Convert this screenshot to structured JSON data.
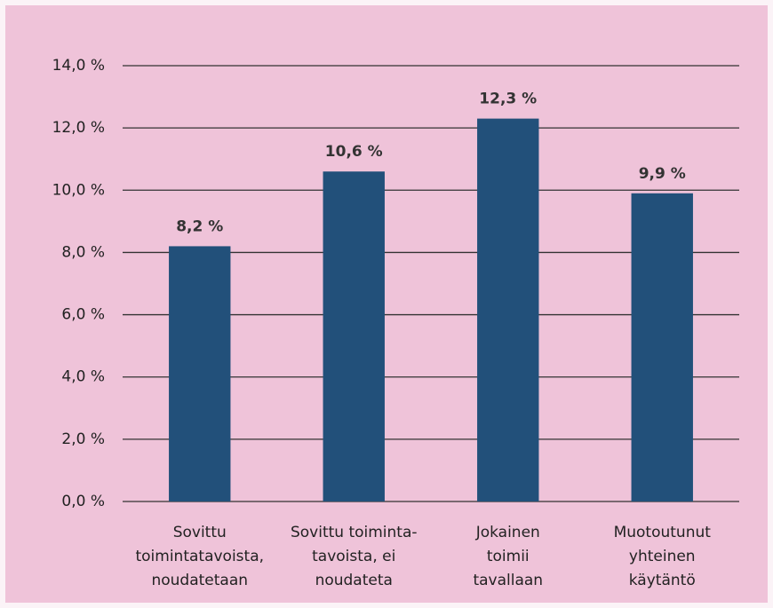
{
  "chart_data": {
    "type": "bar",
    "categories": [
      "Sovittu\ntoimintatavoista,\nnoudatetaan",
      "Sovittu toiminta-\ntavoista, ei\nnoudateta",
      "Jokainen\ntoimii\ntavallaan",
      "Muotoutunut\nyhteinen\nkäytäntö"
    ],
    "values": [
      8.2,
      10.6,
      12.3,
      9.9
    ],
    "value_labels": [
      "8,2 %",
      "10,6 %",
      "12,3 %",
      "9,9 %"
    ],
    "color": "#22507a",
    "ylim": [
      0,
      14
    ],
    "yticks": [
      {
        "value": 0,
        "label": "0,0 %"
      },
      {
        "value": 2,
        "label": "2,0 %"
      },
      {
        "value": 4,
        "label": "4,0 %"
      },
      {
        "value": 6,
        "label": "6,0 %"
      },
      {
        "value": 8,
        "label": "8,0 %"
      },
      {
        "value": 10,
        "label": "10,0 %"
      },
      {
        "value": 12,
        "label": "12,0 %"
      },
      {
        "value": 14,
        "label": "14,0 %"
      }
    ],
    "grid": true
  }
}
